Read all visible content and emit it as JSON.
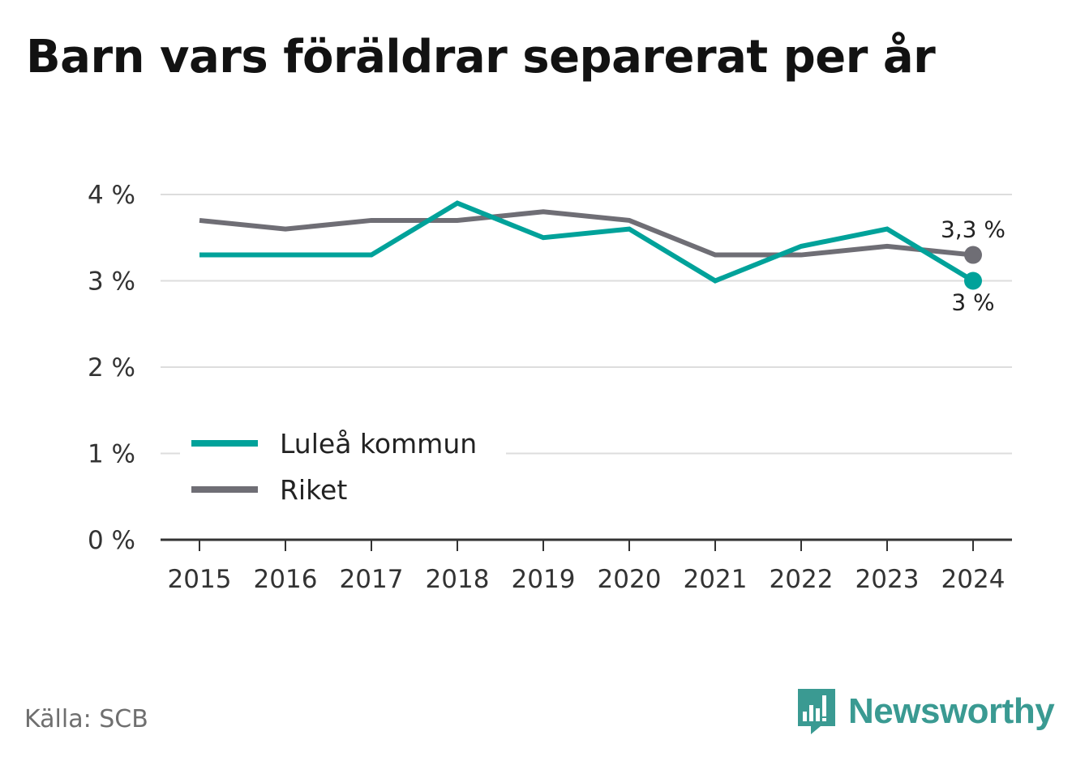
{
  "title": "Barn vars föräldrar separerat per år",
  "source": "Källa: SCB",
  "logo": {
    "text": "Newsworthy",
    "icon": "newsworthy-chart-bubble-icon"
  },
  "colors": {
    "lulea": "#00a29a",
    "riket": "#6f6e75",
    "grid": "#dddddd",
    "axis": "#333333"
  },
  "chart_data": {
    "type": "line",
    "title": "Barn vars föräldrar separerat per år",
    "x": [
      "2015",
      "2016",
      "2017",
      "2018",
      "2019",
      "2020",
      "2021",
      "2022",
      "2023",
      "2024"
    ],
    "ylim": [
      0,
      4
    ],
    "yticks": [
      0,
      1,
      2,
      3,
      4
    ],
    "ytick_labels": [
      "0 %",
      "1 %",
      "2 %",
      "3 %",
      "4 %"
    ],
    "grid": true,
    "legend": "bottom-left",
    "series": [
      {
        "name": "Luleå kommun",
        "color": "#00a29a",
        "values": [
          3.3,
          3.3,
          3.3,
          3.9,
          3.5,
          3.6,
          3.0,
          3.4,
          3.6,
          3.0
        ],
        "end_label": "3 %"
      },
      {
        "name": "Riket",
        "color": "#6f6e75",
        "values": [
          3.7,
          3.6,
          3.7,
          3.7,
          3.8,
          3.7,
          3.3,
          3.3,
          3.4,
          3.3
        ],
        "end_label": "3,3 %"
      }
    ]
  }
}
